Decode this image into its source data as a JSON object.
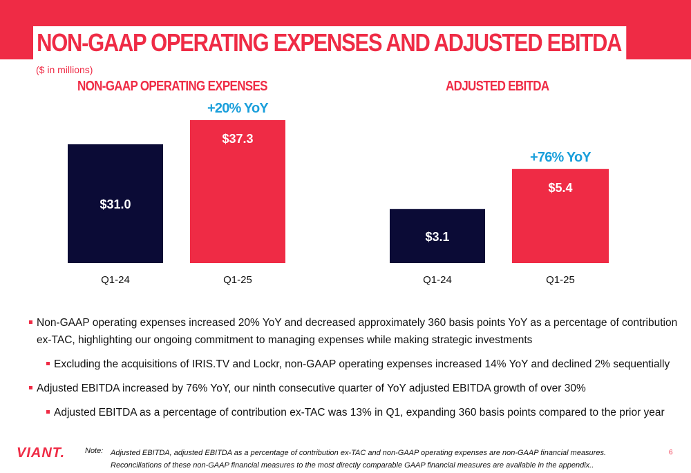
{
  "header": {
    "title": "NON-GAAP OPERATING EXPENSES AND ADJUSTED EBITDA",
    "subtitle": "($ in millions)"
  },
  "chart_data": [
    {
      "type": "bar",
      "title": "NON-GAAP OPERATING EXPENSES",
      "categories": [
        "Q1-24",
        "Q1-25"
      ],
      "values": [
        31.0,
        37.3
      ],
      "data_labels": [
        "$31.0",
        "$37.3"
      ],
      "annotation": "+20% YoY",
      "colors": [
        "#0b0b36",
        "#ef2b45"
      ],
      "ylim": [
        0,
        40
      ],
      "grid": false
    },
    {
      "type": "bar",
      "title": "ADJUSTED EBITDA",
      "categories": [
        "Q1-24",
        "Q1-25"
      ],
      "values": [
        3.1,
        5.4
      ],
      "data_labels": [
        "$3.1",
        "$5.4"
      ],
      "annotation": "+76% YoY",
      "colors": [
        "#0b0b36",
        "#ef2b45"
      ],
      "ylim": [
        0,
        8.8
      ],
      "grid": false
    }
  ],
  "colors": {
    "accent": "#ef2b45",
    "navy": "#0b0b36",
    "annotation": "#1a9fdb"
  },
  "bullets": [
    "Non-GAAP operating expenses increased 20% YoY and decreased approximately 360 basis points YoY as a percentage of contribution ex-TAC, highlighting our ongoing commitment to managing expenses while making strategic investments",
    "Excluding the acquisitions of IRIS.TV and Lockr, non-GAAP operating expenses increased 14% YoY and declined 2% sequentially",
    "Adjusted EBITDA increased by 76% YoY, our ninth consecutive quarter of YoY adjusted EBITDA growth of over 30%",
    "Adjusted EBITDA as a percentage of contribution ex-TAC was 13% in Q1, expanding 360 basis points compared to the prior year"
  ],
  "footer": {
    "logo": "VIANT.",
    "note_label": "Note:",
    "note": "Adjusted EBITDA, adjusted EBITDA as a percentage of contribution ex-TAC and non-GAAP operating expenses are non-GAAP financial measures. Reconciliations of these non-GAAP financial measures to the most directly comparable GAAP financial measures are available in the appendix..",
    "page_number": "6"
  }
}
